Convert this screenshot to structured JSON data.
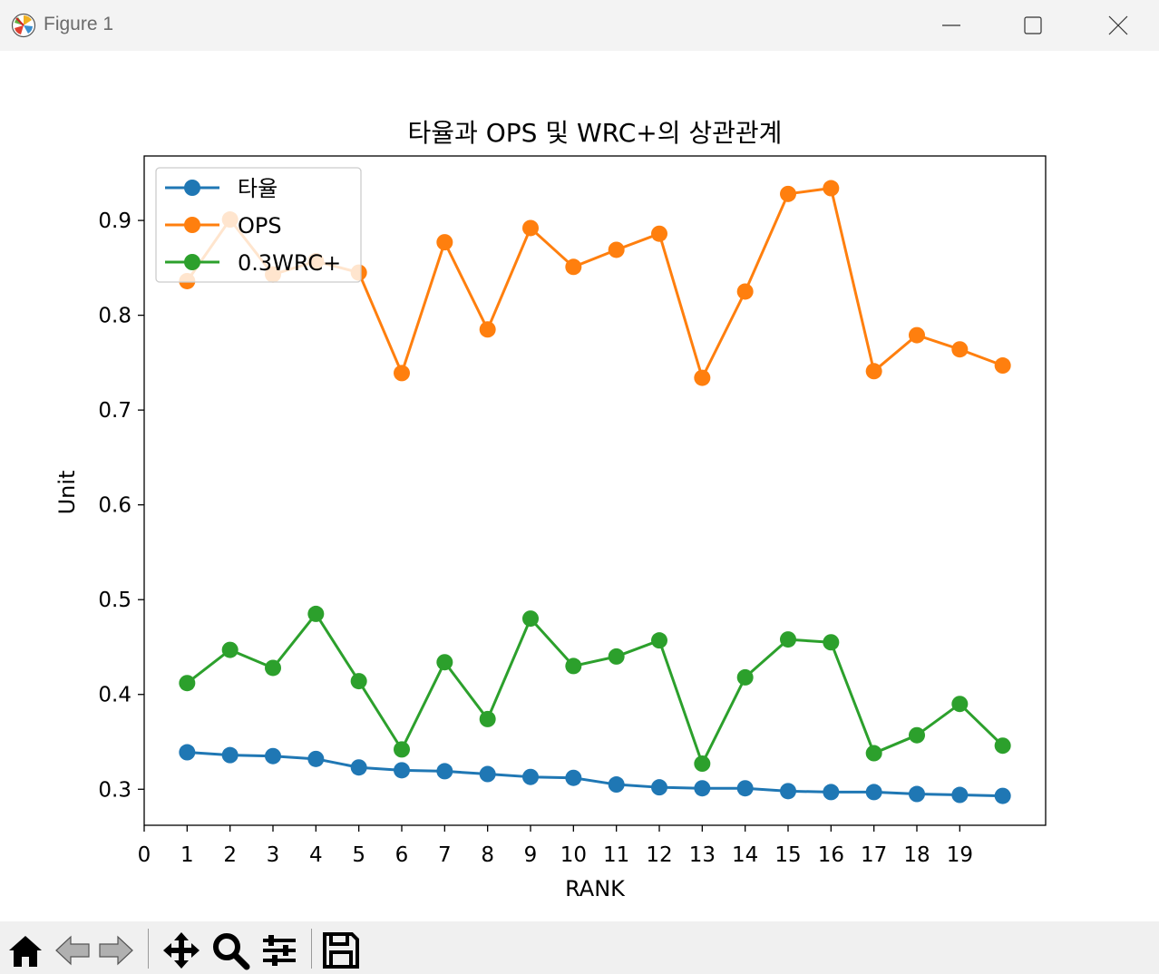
{
  "window": {
    "title": "Figure 1",
    "icon": "matplotlib-logo-icon",
    "controls": [
      "minimize-icon",
      "maximize-icon",
      "close-icon"
    ]
  },
  "toolbar": {
    "buttons": [
      "home-icon",
      "back-arrow-icon",
      "forward-arrow-icon",
      "pan-move-icon",
      "zoom-magnifier-icon",
      "configure-subplots-icon",
      "save-floppy-icon"
    ]
  },
  "chart_data": {
    "type": "line",
    "title": "타율과 OPS 및 WRC+의 상관관계",
    "xlabel": "RANK",
    "ylabel": "Unit",
    "x": [
      1,
      2,
      3,
      4,
      5,
      6,
      7,
      8,
      9,
      10,
      11,
      12,
      13,
      14,
      15,
      16,
      17,
      18,
      19,
      20
    ],
    "xticks": [
      0,
      1,
      2,
      3,
      4,
      5,
      6,
      7,
      8,
      9,
      10,
      11,
      12,
      13,
      14,
      15,
      16,
      17,
      18,
      19
    ],
    "xlim": [
      0,
      21
    ],
    "yticks": [
      0.3,
      0.4,
      0.5,
      0.6,
      0.7,
      0.8,
      0.9
    ],
    "ytick_labels": [
      "0.3",
      "0.4",
      "0.5",
      "0.6",
      "0.7",
      "0.8",
      "0.9"
    ],
    "ylim": [
      0.262,
      0.968
    ],
    "grid": false,
    "legend_position": "upper-left",
    "series": [
      {
        "name": "타율",
        "color": "#1f77b4",
        "values": [
          0.339,
          0.336,
          0.335,
          0.332,
          0.323,
          0.32,
          0.319,
          0.316,
          0.313,
          0.312,
          0.305,
          0.302,
          0.301,
          0.301,
          0.298,
          0.297,
          0.297,
          0.295,
          0.294,
          0.293
        ]
      },
      {
        "name": "OPS",
        "color": "#ff7f0e",
        "values": [
          0.836,
          0.901,
          0.843,
          0.857,
          0.845,
          0.739,
          0.877,
          0.785,
          0.892,
          0.851,
          0.869,
          0.886,
          0.734,
          0.825,
          0.928,
          0.934,
          0.741,
          0.779,
          0.764,
          0.747
        ]
      },
      {
        "name": "0.3WRC+",
        "color": "#2ca02c",
        "values": [
          0.412,
          0.447,
          0.428,
          0.485,
          0.414,
          0.342,
          0.434,
          0.374,
          0.48,
          0.43,
          0.44,
          0.457,
          0.327,
          0.418,
          0.458,
          0.455,
          0.338,
          0.357,
          0.39,
          0.346
        ]
      }
    ]
  }
}
